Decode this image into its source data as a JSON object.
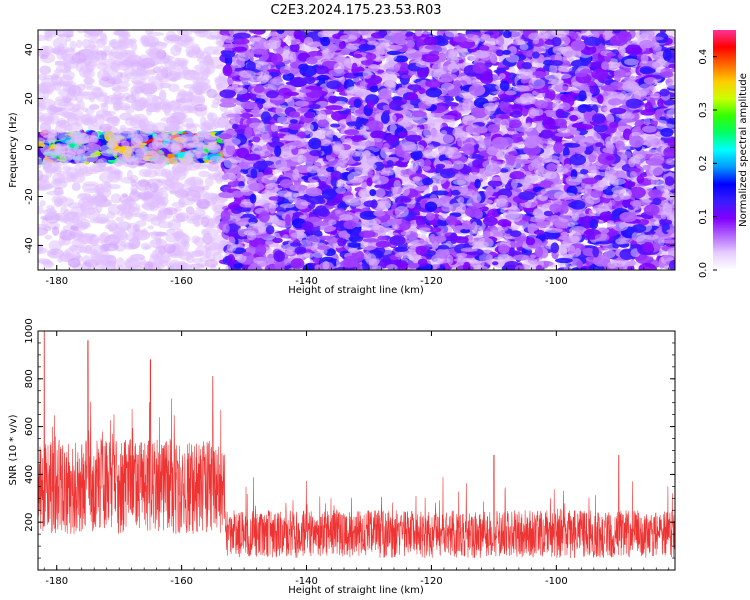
{
  "title": "C2E3.2024.175.23.53.R03",
  "chart_data": [
    {
      "type": "heatmap",
      "xlabel": "Height of straight line (km)",
      "ylabel": "Frequency (Hz)",
      "xlim": [
        -183,
        -81
      ],
      "ylim": [
        -50,
        48
      ],
      "xticks": [
        -180,
        -160,
        -140,
        -120,
        -100
      ],
      "yticks": [
        -40,
        -20,
        0,
        20,
        40
      ],
      "colorbar": {
        "label": "Normalized spectral amplitude",
        "range": [
          0.0,
          0.45
        ],
        "ticks": [
          "0.0",
          "0.1",
          "0.2",
          "0.3",
          "0.4"
        ],
        "colors": [
          "#ffffff",
          "#e6ccff",
          "#b366ff",
          "#8000ff",
          "#3b1cff",
          "#0000ff",
          "#0099ff",
          "#00ffff",
          "#00ff66",
          "#33ff00",
          "#ccff00",
          "#ffcc00",
          "#ff6600",
          "#ff0000",
          "#ff3399"
        ]
      },
      "grid": false,
      "features": [
        {
          "x_range": [
            -183,
            -153
          ],
          "y_range": [
            -5,
            5
          ],
          "amplitude_range": [
            0.1,
            0.45
          ]
        },
        {
          "x_range": [
            -183,
            -153
          ],
          "y_range": [
            -50,
            48
          ],
          "amplitude_range": [
            0.0,
            0.05
          ]
        },
        {
          "x_range": [
            -153,
            -81
          ],
          "y_range": [
            -50,
            48
          ],
          "amplitude_range": [
            0.02,
            0.15
          ]
        }
      ]
    },
    {
      "type": "line",
      "xlabel": "Height of straight line (km)",
      "ylabel": "SNR (10 * v/v)",
      "xlim": [
        -183,
        -81
      ],
      "ylim": [
        0,
        1000
      ],
      "xticks": [
        -180,
        -160,
        -140,
        -120,
        -100
      ],
      "yticks": [
        200,
        400,
        600,
        800,
        1000
      ],
      "color": "#ee3333",
      "grid": false,
      "features": [
        {
          "x_range": [
            -183,
            -153
          ],
          "typical_range": [
            150,
            550
          ],
          "peaks": [
            [
              -182,
              1000
            ],
            [
              -175,
              960
            ],
            [
              -165,
              880
            ],
            [
              -155,
              810
            ]
          ]
        },
        {
          "x_range": [
            -153,
            -81
          ],
          "typical_range": [
            50,
            250
          ],
          "peaks": [
            [
              -110,
              480
            ],
            [
              -90,
              480
            ]
          ]
        }
      ]
    }
  ]
}
